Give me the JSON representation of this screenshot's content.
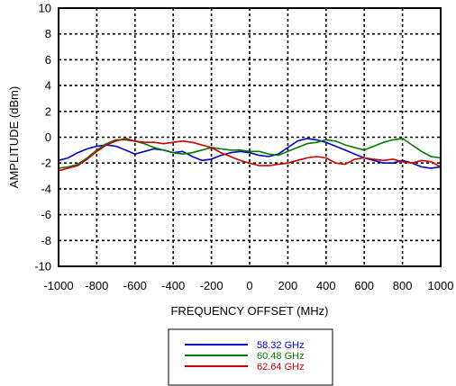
{
  "chart_data": {
    "type": "line",
    "xlabel": "FREQUENCY OFFSET (MHz)",
    "ylabel": "AMPLITUDE (dBm)",
    "xlim": [
      -1000,
      1000
    ],
    "ylim": [
      -10,
      10
    ],
    "xticks": [
      -1000,
      -800,
      -600,
      -400,
      -200,
      0,
      200,
      400,
      600,
      800,
      1000
    ],
    "yticks": [
      -10,
      -8,
      -6,
      -4,
      -2,
      0,
      2,
      4,
      6,
      8,
      10
    ],
    "grid": true,
    "grid_style": "dotted",
    "legend_position": "bottom-center",
    "series": [
      {
        "name": "58.32 GHz",
        "color": "#0000cc",
        "x": [
          -1000,
          -950,
          -900,
          -850,
          -800,
          -750,
          -700,
          -650,
          -600,
          -550,
          -500,
          -450,
          -400,
          -350,
          -300,
          -250,
          -200,
          -150,
          -100,
          -50,
          0,
          50,
          100,
          150,
          200,
          250,
          300,
          350,
          400,
          450,
          500,
          550,
          600,
          650,
          700,
          750,
          800,
          850,
          900,
          950,
          1000
        ],
        "y": [
          -1.8,
          -1.6,
          -1.2,
          -0.9,
          -0.7,
          -0.6,
          -0.7,
          -1.0,
          -1.3,
          -1.1,
          -0.9,
          -1.0,
          -1.2,
          -1.1,
          -1.5,
          -1.8,
          -1.7,
          -1.4,
          -1.2,
          -1.1,
          -1.2,
          -1.4,
          -1.5,
          -1.3,
          -0.8,
          -0.3,
          -0.1,
          -0.2,
          -0.4,
          -0.7,
          -1.0,
          -1.3,
          -1.6,
          -1.8,
          -2.0,
          -2.0,
          -1.8,
          -2.0,
          -2.3,
          -2.4,
          -2.3
        ]
      },
      {
        "name": "60.48 GHz",
        "color": "#007a00",
        "x": [
          -1000,
          -950,
          -900,
          -850,
          -800,
          -750,
          -700,
          -650,
          -600,
          -550,
          -500,
          -450,
          -400,
          -350,
          -300,
          -250,
          -200,
          -150,
          -100,
          -50,
          0,
          50,
          100,
          150,
          200,
          250,
          300,
          350,
          400,
          450,
          500,
          550,
          600,
          650,
          700,
          750,
          800,
          850,
          900,
          950,
          1000
        ],
        "y": [
          -2.4,
          -2.3,
          -2.1,
          -1.6,
          -1.0,
          -0.5,
          -0.2,
          -0.2,
          -0.3,
          -0.5,
          -0.8,
          -1.0,
          -1.2,
          -1.3,
          -1.2,
          -1.0,
          -0.8,
          -0.9,
          -1.0,
          -1.0,
          -1.1,
          -1.1,
          -1.3,
          -1.4,
          -1.1,
          -0.8,
          -0.5,
          -0.4,
          -0.2,
          -0.3,
          -0.6,
          -0.8,
          -1.0,
          -0.7,
          -0.4,
          -0.2,
          -0.1,
          -0.6,
          -1.1,
          -1.5,
          -1.6
        ]
      },
      {
        "name": "62.64 GHz",
        "color": "#cc0000",
        "x": [
          -1000,
          -950,
          -900,
          -850,
          -800,
          -750,
          -700,
          -650,
          -600,
          -550,
          -500,
          -450,
          -400,
          -350,
          -300,
          -250,
          -200,
          -150,
          -100,
          -50,
          0,
          50,
          100,
          150,
          200,
          250,
          300,
          350,
          400,
          450,
          500,
          550,
          600,
          650,
          700,
          750,
          800,
          850,
          900,
          950,
          1000
        ],
        "y": [
          -2.6,
          -2.4,
          -2.2,
          -1.7,
          -1.1,
          -0.6,
          -0.3,
          -0.1,
          -0.3,
          -0.4,
          -0.4,
          -0.5,
          -0.4,
          -0.3,
          -0.4,
          -0.6,
          -0.8,
          -1.2,
          -1.5,
          -1.8,
          -2.0,
          -2.2,
          -2.2,
          -2.1,
          -2.0,
          -1.8,
          -1.6,
          -1.5,
          -1.6,
          -2.0,
          -2.1,
          -1.7,
          -1.6,
          -1.7,
          -1.8,
          -1.7,
          -1.9,
          -2.0,
          -1.8,
          -1.9,
          -2.3
        ]
      }
    ]
  }
}
